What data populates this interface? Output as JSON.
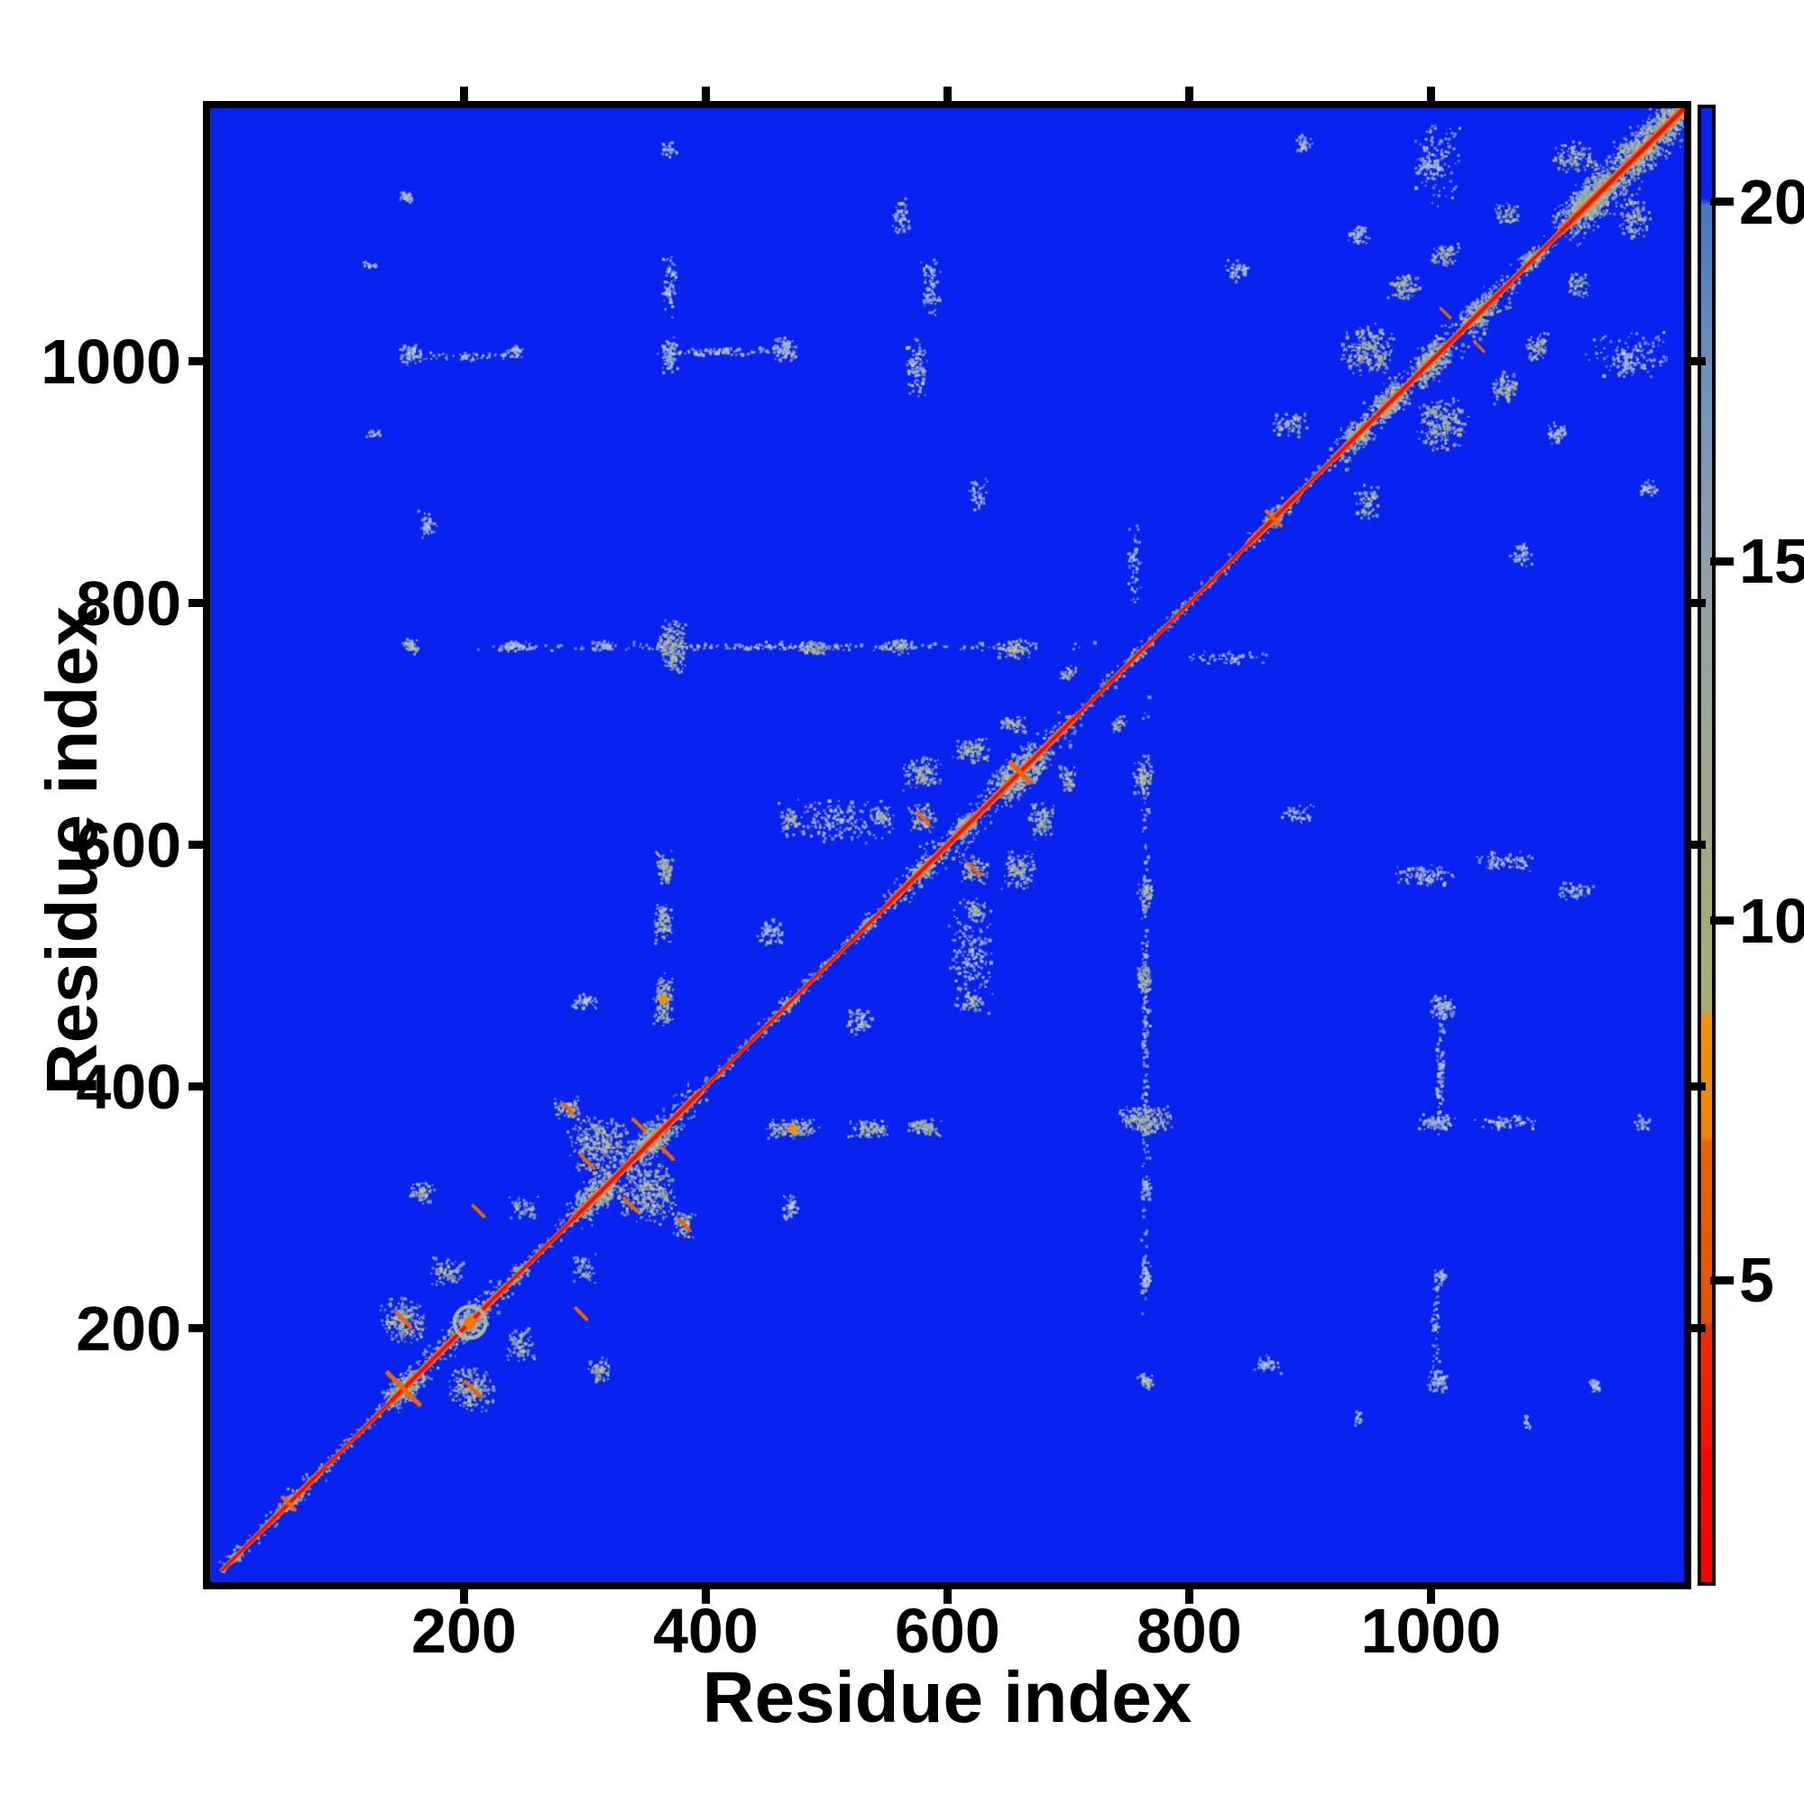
{
  "chart_data": {
    "type": "heatmap",
    "title": "",
    "xlabel": "Residue index",
    "ylabel": "Residue index",
    "x_ticks": [
      200,
      400,
      600,
      800,
      1000
    ],
    "y_ticks": [
      200,
      400,
      600,
      800,
      1000
    ],
    "x_range": [
      1,
      1205
    ],
    "y_range": [
      1,
      1205
    ],
    "n_residues_approx": 1205,
    "grid": false,
    "legend_position": "none",
    "colorbar": {
      "ticks": [
        20,
        15,
        10,
        5
      ],
      "min": 0.8,
      "max": 21.3,
      "gradient": [
        {
          "v": 21.3,
          "c": "#0822f0"
        },
        {
          "v": 20.05,
          "c": "#0822f0"
        },
        {
          "v": 19.95,
          "c": "#4377c4"
        },
        {
          "v": 17.5,
          "c": "#6f92bd"
        },
        {
          "v": 15.0,
          "c": "#8ba0ab"
        },
        {
          "v": 12.5,
          "c": "#9aa792"
        },
        {
          "v": 10.5,
          "c": "#a2aa7e"
        },
        {
          "v": 8.75,
          "c": "#a8ac6f"
        },
        {
          "v": 8.65,
          "c": "#f29200"
        },
        {
          "v": 7.0,
          "c": "#ef8300"
        },
        {
          "v": 6.9,
          "c": "#e96200"
        },
        {
          "v": 4.45,
          "c": "#e75200"
        },
        {
          "v": 4.35,
          "c": "#f42c00"
        },
        {
          "v": 2.7,
          "c": "#f91200"
        },
        {
          "v": 2.6,
          "c": "#fd0400"
        },
        {
          "v": 0.8,
          "c": "#ff0000"
        }
      ]
    },
    "colors": {
      "background": "#0822f0",
      "diagonal_red": "#ef0f00",
      "diagonal_orange": "#f07800",
      "contact_stroke_orange": "#ee6400",
      "frame": "#000000",
      "ring": "#a8b8a0"
    },
    "palettes": {
      "sage": [
        "#9cb09f",
        "#8da4a9",
        "#aab8a6",
        "#b7c2bc",
        "#93a8b5",
        "#c2c48a",
        "#ccc673",
        "#a6b695"
      ],
      "pale": [
        "#b3c0d6",
        "#c5cfdd",
        "#a3b6cc",
        "#93a9c2",
        "#bdc8d2",
        "#9fb4bf"
      ],
      "fringe": [
        "#9cb09f",
        "#8da4a9",
        "#aab8a6",
        "#7d9cc0",
        "#c2c48a",
        "#b5c0ba",
        "#a0b2a0"
      ]
    },
    "diagonal": {
      "segments": [
        [
          0,
          40,
          5,
          2,
          1.2
        ],
        [
          40,
          80,
          7,
          2.6,
          1.4
        ],
        [
          80,
          140,
          4,
          1.8,
          1.1
        ],
        [
          140,
          235,
          10,
          2.8,
          1.5
        ],
        [
          235,
          290,
          6,
          2,
          1.2
        ],
        [
          290,
          395,
          12,
          3,
          1.6
        ],
        [
          395,
          440,
          4,
          1.7,
          1.1
        ],
        [
          440,
          487,
          6,
          1.9,
          1.1
        ],
        [
          487,
          520,
          4,
          1.7,
          1.1
        ],
        [
          520,
          552,
          6,
          2,
          1.2
        ],
        [
          552,
          705,
          12,
          2.9,
          1.5
        ],
        [
          705,
          730,
          4,
          1.7,
          1.1
        ],
        [
          730,
          768,
          6,
          2,
          1.2
        ],
        [
          768,
          850,
          4,
          1.7,
          1.1
        ],
        [
          850,
          890,
          7,
          2.9,
          1.5
        ],
        [
          890,
          920,
          5,
          1.9,
          1.1
        ],
        [
          920,
          1065,
          13,
          2.7,
          1.5
        ],
        [
          1065,
          1108,
          8,
          2.2,
          1.2
        ],
        [
          1108,
          1209,
          18,
          3.3,
          1.7
        ]
      ],
      "blobs": [
        [
          12,
          6
        ],
        [
          55,
          9
        ],
        [
          150,
          15
        ],
        [
          205,
          15
        ],
        [
          245,
          9
        ],
        [
          310,
          17
        ],
        [
          355,
          17
        ],
        [
          470,
          7
        ],
        [
          535,
          7
        ],
        [
          580,
          10
        ],
        [
          615,
          11
        ],
        [
          660,
          21
        ],
        [
          755,
          7
        ],
        [
          870,
          9
        ],
        [
          940,
          14
        ],
        [
          965,
          16
        ],
        [
          1000,
          17
        ],
        [
          1040,
          15
        ],
        [
          1085,
          10
        ],
        [
          1125,
          18
        ],
        [
          1140,
          22
        ],
        [
          1175,
          22
        ],
        [
          1200,
          18
        ]
      ]
    },
    "clusters": [
      {
        "x": 150,
        "y": 207,
        "rx": 20,
        "ry": 20,
        "n": 200,
        "p": "sage"
      },
      {
        "x": 165,
        "y": 312,
        "rx": 12,
        "ry": 10,
        "n": 70,
        "p": "sage"
      },
      {
        "x": 186,
        "y": 247,
        "rx": 16,
        "ry": 12,
        "n": 80,
        "p": "sage"
      },
      {
        "x": 249,
        "y": 300,
        "rx": 14,
        "ry": 10,
        "n": 60,
        "p": "sage"
      },
      {
        "x": 312,
        "y": 352,
        "rx": 28,
        "ry": 26,
        "n": 330,
        "p": "sage"
      },
      {
        "x": 286,
        "y": 382,
        "rx": 12,
        "ry": 10,
        "n": 70,
        "p": "sage"
      },
      {
        "x": 365,
        "y": 472,
        "rx": 9,
        "ry": 24,
        "n": 140,
        "p": "sage"
      },
      {
        "x": 365,
        "y": 534,
        "rx": 8,
        "ry": 20,
        "n": 110,
        "p": "sage"
      },
      {
        "x": 366,
        "y": 580,
        "rx": 8,
        "ry": 16,
        "n": 90,
        "p": "sage"
      },
      {
        "x": 300,
        "y": 470,
        "rx": 12,
        "ry": 8,
        "n": 45,
        "p": "pale"
      },
      {
        "x": 455,
        "y": 528,
        "rx": 14,
        "ry": 12,
        "n": 70,
        "p": "pale"
      },
      {
        "x": 373,
        "y": 764,
        "rx": 12,
        "ry": 26,
        "n": 190,
        "p": "sage"
      },
      {
        "x": 450,
        "y": 764,
        "rx": 280,
        "ry": 4,
        "n": 200,
        "p": "pale"
      },
      {
        "x": 156,
        "y": 764,
        "rx": 8,
        "ry": 7,
        "n": 45,
        "p": "sage"
      },
      {
        "x": 240,
        "y": 764,
        "rx": 18,
        "ry": 5,
        "n": 55,
        "p": "pale"
      },
      {
        "x": 316,
        "y": 764,
        "rx": 10,
        "ry": 5,
        "n": 45,
        "p": "pale"
      },
      {
        "x": 490,
        "y": 763,
        "rx": 14,
        "ry": 7,
        "n": 70,
        "p": "sage"
      },
      {
        "x": 560,
        "y": 764,
        "rx": 12,
        "ry": 7,
        "n": 55,
        "p": "sage"
      },
      {
        "x": 655,
        "y": 762,
        "rx": 16,
        "ry": 9,
        "n": 80,
        "p": "sage"
      },
      {
        "x": 700,
        "y": 742,
        "rx": 8,
        "ry": 7,
        "n": 40,
        "p": "sage"
      },
      {
        "x": 156,
        "y": 1005,
        "rx": 11,
        "ry": 9,
        "n": 55,
        "p": "pale"
      },
      {
        "x": 152,
        "y": 1136,
        "rx": 7,
        "ry": 6,
        "n": 28,
        "p": "pale"
      },
      {
        "x": 200,
        "y": 1004,
        "rx": 55,
        "ry": 4,
        "n": 50,
        "p": "pale"
      },
      {
        "x": 370,
        "y": 1005,
        "rx": 7,
        "ry": 18,
        "n": 85,
        "p": "pale"
      },
      {
        "x": 370,
        "y": 1062,
        "rx": 6,
        "ry": 28,
        "n": 70,
        "p": "pale"
      },
      {
        "x": 415,
        "y": 1008,
        "rx": 60,
        "ry": 4,
        "n": 70,
        "p": "pale"
      },
      {
        "x": 466,
        "y": 1010,
        "rx": 11,
        "ry": 13,
        "n": 85,
        "p": "pale"
      },
      {
        "x": 242,
        "y": 1008,
        "rx": 7,
        "ry": 7,
        "n": 30,
        "p": "pale"
      },
      {
        "x": 575,
        "y": 995,
        "rx": 9,
        "ry": 26,
        "n": 95,
        "p": "pale"
      },
      {
        "x": 586,
        "y": 1062,
        "rx": 9,
        "ry": 26,
        "n": 90,
        "p": "pale"
      },
      {
        "x": 562,
        "y": 1120,
        "rx": 9,
        "ry": 16,
        "n": 55,
        "p": "pale"
      },
      {
        "x": 170,
        "y": 865,
        "rx": 9,
        "ry": 13,
        "n": 48,
        "p": "pale"
      },
      {
        "x": 370,
        "y": 1175,
        "rx": 9,
        "ry": 7,
        "n": 30,
        "p": "pale"
      },
      {
        "x": 510,
        "y": 620,
        "rx": 50,
        "ry": 20,
        "n": 200,
        "p": "pale"
      },
      {
        "x": 470,
        "y": 620,
        "rx": 9,
        "ry": 9,
        "n": 55,
        "p": "sage"
      },
      {
        "x": 545,
        "y": 624,
        "rx": 9,
        "ry": 9,
        "n": 50,
        "p": "sage"
      },
      {
        "x": 580,
        "y": 622,
        "rx": 13,
        "ry": 13,
        "n": 90,
        "p": "sage"
      },
      {
        "x": 578,
        "y": 660,
        "rx": 18,
        "ry": 16,
        "n": 120,
        "p": "sage"
      },
      {
        "x": 620,
        "y": 678,
        "rx": 16,
        "ry": 12,
        "n": 95,
        "p": "sage"
      },
      {
        "x": 655,
        "y": 700,
        "rx": 12,
        "ry": 8,
        "n": 55,
        "p": "sage"
      },
      {
        "x": 625,
        "y": 890,
        "rx": 9,
        "ry": 14,
        "n": 42,
        "p": "pale"
      },
      {
        "x": 755,
        "y": 830,
        "rx": 6,
        "ry": 36,
        "n": 60,
        "p": "pale"
      },
      {
        "x": 840,
        "y": 1075,
        "rx": 12,
        "ry": 10,
        "n": 48,
        "p": "pale"
      },
      {
        "x": 884,
        "y": 948,
        "rx": 16,
        "ry": 12,
        "n": 75,
        "p": "sage"
      },
      {
        "x": 948,
        "y": 1010,
        "rx": 24,
        "ry": 22,
        "n": 240,
        "p": "sage"
      },
      {
        "x": 978,
        "y": 1062,
        "rx": 14,
        "ry": 12,
        "n": 85,
        "p": "sage"
      },
      {
        "x": 1012,
        "y": 1088,
        "rx": 12,
        "ry": 10,
        "n": 75,
        "p": "sage"
      },
      {
        "x": 940,
        "y": 1105,
        "rx": 10,
        "ry": 9,
        "n": 48,
        "p": "pale"
      },
      {
        "x": 1000,
        "y": 1162,
        "rx": 10,
        "ry": 9,
        "n": 48,
        "p": "pale"
      },
      {
        "x": 1062,
        "y": 1122,
        "rx": 12,
        "ry": 10,
        "n": 60,
        "p": "sage"
      },
      {
        "x": 1118,
        "y": 1168,
        "rx": 18,
        "ry": 14,
        "n": 110,
        "p": "sage"
      },
      {
        "x": 1165,
        "y": 1005,
        "rx": 38,
        "ry": 22,
        "n": 110,
        "p": "pale"
      },
      {
        "x": 895,
        "y": 1180,
        "rx": 10,
        "ry": 8,
        "n": 35,
        "p": "pale"
      },
      {
        "x": 125,
        "y": 940,
        "rx": 6,
        "ry": 5,
        "n": 18,
        "p": "pale"
      },
      {
        "x": 122,
        "y": 1080,
        "rx": 7,
        "ry": 5,
        "n": 18,
        "p": "pale"
      }
    ],
    "orange_strokes": [
      [
        150,
        150,
        26,
        5
      ],
      [
        55,
        55,
        10,
        4
      ],
      [
        150,
        207,
        12,
        4
      ],
      [
        212,
        297,
        9,
        4
      ],
      [
        302,
        338,
        11,
        4
      ],
      [
        345,
        368,
        10,
        4
      ],
      [
        286,
        382,
        8,
        4
      ],
      [
        580,
        622,
        9,
        4
      ],
      [
        660,
        660,
        16,
        5
      ],
      [
        870,
        870,
        12,
        4
      ],
      [
        1012,
        1040,
        8,
        3
      ]
    ],
    "orange_dots": [
      {
        "x": 205,
        "y": 205,
        "r": 5,
        "c": "#f07a00"
      },
      {
        "x": 365,
        "y": 472,
        "r": 4,
        "c": "#e89400"
      }
    ],
    "rings": [
      {
        "x": 205,
        "y": 205,
        "r": 13
      }
    ]
  }
}
